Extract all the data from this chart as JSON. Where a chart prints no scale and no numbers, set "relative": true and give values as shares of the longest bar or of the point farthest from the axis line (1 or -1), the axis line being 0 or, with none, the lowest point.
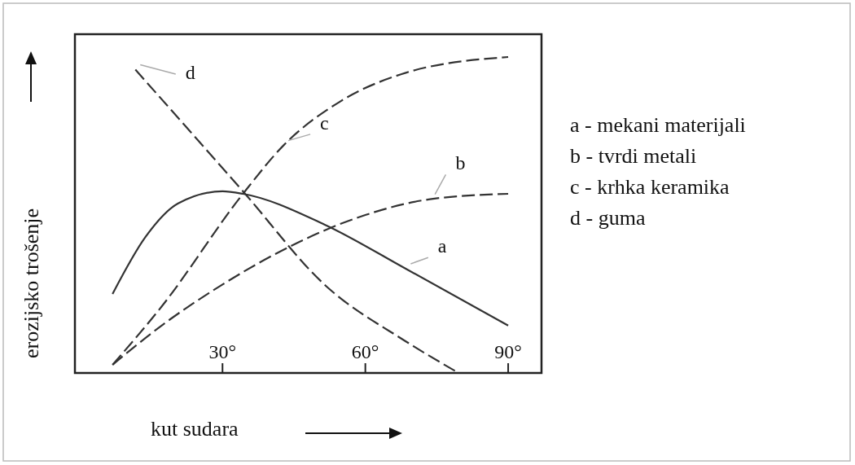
{
  "chart_data": {
    "type": "line",
    "relative": true,
    "xlabel": "kut sudara",
    "ylabel": "erozijsko trošenje",
    "xlim": [
      -1,
      97
    ],
    "xticks": [
      {
        "value": 30,
        "label": "30°"
      },
      {
        "value": 60,
        "label": "60°"
      },
      {
        "value": 90,
        "label": "90°"
      }
    ],
    "grid": false,
    "marker": "none",
    "series": [
      {
        "name": "a",
        "color": "#333333",
        "line_style": "solid",
        "x": [
          6.9,
          13.8,
          20.6,
          30,
          34.3,
          51.4,
          68.5,
          90
        ],
        "values": [
          0.25,
          0.43,
          0.536,
          0.575,
          0.567,
          0.47,
          0.33,
          0.15
        ]
      },
      {
        "name": "b",
        "color": "#333333",
        "line_style": "dashed",
        "x": [
          6.9,
          17.2,
          30,
          42.8,
          60,
          73.6,
          90
        ],
        "values": [
          0.026,
          0.15,
          0.28,
          0.39,
          0.5,
          0.55,
          0.567
        ]
      },
      {
        "name": "c",
        "color": "#333333",
        "line_style": "dashed",
        "x": [
          6.9,
          17.2,
          34.3,
          42.8,
          54.8,
          68.5,
          90
        ],
        "values": [
          0.026,
          0.21,
          0.567,
          0.72,
          0.86,
          0.95,
          1.0
        ]
      },
      {
        "name": "d",
        "color": "#333333",
        "line_style": "dashed",
        "x": [
          11.7,
          34.3,
          51.4,
          68.5,
          79.6
        ],
        "values": [
          0.96,
          0.575,
          0.28,
          0.1,
          0.0
        ]
      }
    ],
    "annotations": [
      "a - mekani materijali",
      "b - tvrdi metali",
      "c - krhka keramika",
      "d - guma"
    ]
  }
}
